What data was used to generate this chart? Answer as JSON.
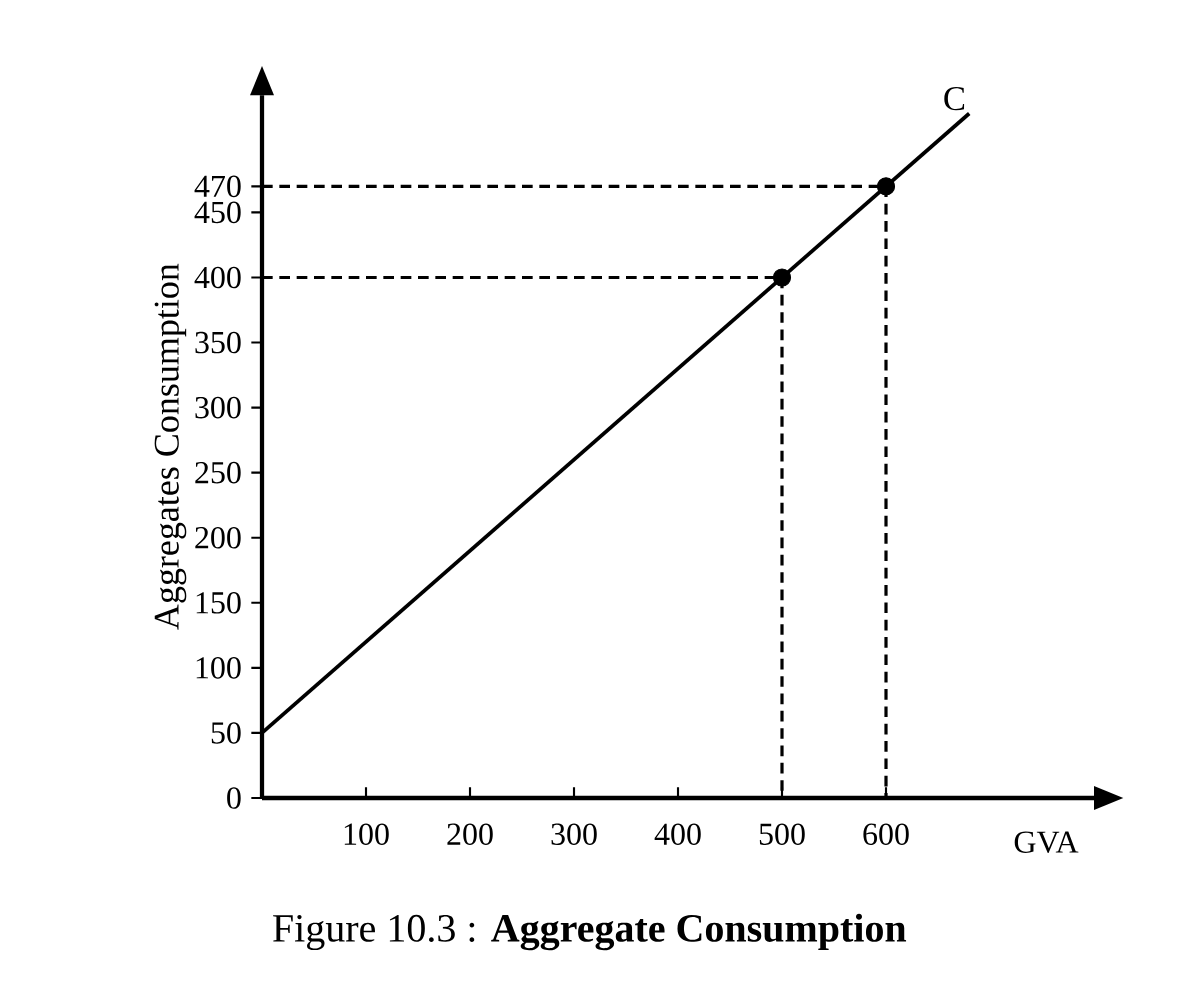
{
  "chart_data": {
    "type": "line",
    "title": "Figure 10.3 : **Aggregate Consumption**",
    "xlabel": "GVA",
    "ylabel": "Aggregates Consumption",
    "xlim": [
      0,
      800
    ],
    "ylim": [
      0,
      540
    ],
    "xticks": [
      100,
      200,
      300,
      400,
      500,
      600
    ],
    "yticks": [
      0,
      50,
      100,
      150,
      200,
      250,
      300,
      350,
      400,
      450,
      470
    ],
    "series": [
      {
        "name": "C",
        "color": "#000000",
        "x": [
          0,
          680
        ],
        "values": [
          50,
          526
        ],
        "line_style": "solid"
      },
      {
        "color": "#000000",
        "x": [
          0,
          500,
          500
        ],
        "values": [
          400,
          400,
          0
        ],
        "line_style": "dashed"
      },
      {
        "color": "#000000",
        "x": [
          0,
          600,
          600
        ],
        "values": [
          470,
          470,
          0
        ],
        "line_style": "dashed"
      },
      {
        "type": "scatter",
        "color": "#000000",
        "x": [
          500,
          600
        ],
        "values": [
          400,
          470
        ],
        "marker": "circle"
      }
    ]
  }
}
